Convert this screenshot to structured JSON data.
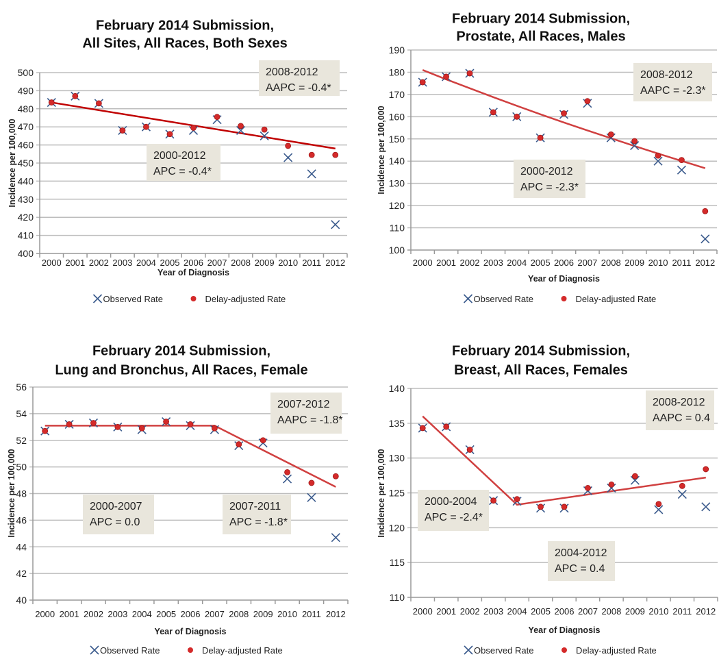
{
  "chart_data": [
    {
      "type": "scatter",
      "title_lines": [
        "February 2014 Submission,",
        "All Sites, All Races, Both Sexes"
      ],
      "xlabel": "Year of Diagnosis",
      "ylabel": "Incidence per 100,000",
      "ylim": [
        400,
        500
      ],
      "ystep": 10,
      "categories": [
        "2000",
        "2001",
        "2002",
        "2003",
        "2004",
        "2005",
        "2006",
        "2007",
        "2008",
        "2009",
        "2010",
        "2011",
        "2012"
      ],
      "series": [
        {
          "name": "Observed Rate",
          "marker": "x",
          "color": "#3a5a8c",
          "values": [
            483.5,
            487,
            483,
            468,
            470,
            466,
            468,
            474,
            468,
            465,
            453,
            444,
            416
          ]
        },
        {
          "name": "Delay-adjusted Rate",
          "marker": "dot",
          "color": "#d42a2a",
          "values": [
            483.5,
            487,
            483,
            468,
            470,
            466,
            469.5,
            475.5,
            470.5,
            468.5,
            459.5,
            454.5,
            454.5
          ]
        }
      ],
      "trend": {
        "color": "#c00000",
        "points": [
          [
            0,
            483.5
          ],
          [
            12,
            458
          ]
        ]
      },
      "annotations": [
        [
          "2008-2012",
          "AAPC = -0.4*"
        ],
        [
          "2000-2012",
          "APC = -0.4*"
        ]
      ],
      "grid": true,
      "legend": "bottom"
    },
    {
      "type": "scatter",
      "title_lines": [
        "February 2014 Submission,",
        "Prostate, All Races, Males"
      ],
      "xlabel": "Year of Diagnosis",
      "ylabel": "Incidence per 100,000",
      "ylim": [
        100,
        190
      ],
      "ystep": 10,
      "categories": [
        "2000",
        "2001",
        "2002",
        "2003",
        "2004",
        "2005",
        "2006",
        "2007",
        "2008",
        "2009",
        "2010",
        "2011",
        "2012"
      ],
      "series": [
        {
          "name": "Observed Rate",
          "marker": "x",
          "color": "#3a5a8c",
          "values": [
            175.5,
            178,
            179.5,
            162,
            160,
            150.5,
            161,
            166,
            150.5,
            147,
            140,
            136,
            105
          ]
        },
        {
          "name": "Delay-adjusted Rate",
          "marker": "dot",
          "color": "#d42a2a",
          "values": [
            175.5,
            178,
            179.5,
            162,
            160,
            150.5,
            161.5,
            167,
            152,
            149,
            142.5,
            140.5,
            117.5
          ]
        }
      ],
      "trend": {
        "color": "#d04040",
        "points": [
          [
            0,
            181
          ],
          [
            1,
            176.8
          ],
          [
            2,
            172.8
          ],
          [
            3,
            168.8
          ],
          [
            4,
            164.9
          ],
          [
            5,
            161.1
          ],
          [
            6,
            157.4
          ],
          [
            7,
            153.8
          ],
          [
            8,
            150.3
          ],
          [
            9,
            146.8
          ],
          [
            10,
            143.4
          ],
          [
            11,
            140.1
          ],
          [
            12,
            136.8
          ]
        ]
      },
      "annotations": [
        [
          "2008-2012",
          "AAPC = -2.3*"
        ],
        [
          "2000-2012",
          "APC = -2.3*"
        ]
      ],
      "grid": true,
      "legend": "bottom"
    },
    {
      "type": "scatter",
      "title_lines": [
        "February 2014 Submission,",
        "Lung and Bronchus, All Races, Female"
      ],
      "xlabel": "Year of Diagnosis",
      "ylabel": "Incidence per 100,000",
      "ylim": [
        40,
        56
      ],
      "ystep": 2,
      "categories": [
        "2000",
        "2001",
        "2002",
        "2003",
        "2004",
        "2005",
        "2006",
        "2007",
        "2008",
        "2009",
        "2010",
        "2011",
        "2012"
      ],
      "series": [
        {
          "name": "Observed Rate",
          "marker": "x",
          "color": "#3a5a8c",
          "values": [
            52.7,
            53.2,
            53.3,
            53.0,
            52.8,
            53.4,
            53.1,
            52.8,
            51.6,
            51.8,
            49.1,
            47.7,
            44.7
          ]
        },
        {
          "name": "Delay-adjusted Rate",
          "marker": "dot",
          "color": "#d42a2a",
          "values": [
            52.7,
            53.2,
            53.3,
            53.0,
            52.9,
            53.4,
            53.2,
            52.9,
            51.7,
            52.0,
            49.6,
            48.8,
            49.3
          ]
        }
      ],
      "trend": {
        "color": "#d04040",
        "points": [
          [
            0,
            53.1
          ],
          [
            7,
            53.1
          ],
          [
            12,
            48.5
          ]
        ]
      },
      "annotations": [
        [
          "2007-2012",
          "AAPC = -1.8*"
        ],
        [
          "2000-2007",
          "APC = 0.0"
        ],
        [
          "2007-2011",
          "APC = -1.8*"
        ]
      ],
      "grid": true,
      "legend": "bottom"
    },
    {
      "type": "scatter",
      "title_lines": [
        "February 2014 Submission,",
        "Breast, All Races, Females"
      ],
      "xlabel": "Year of Diagnosis",
      "ylabel": "Incidence per 100,000",
      "ylim": [
        110,
        140
      ],
      "ystep": 5,
      "categories": [
        "2000",
        "2001",
        "2002",
        "2003",
        "2004",
        "2005",
        "2006",
        "2007",
        "2008",
        "2009",
        "2010",
        "2011",
        "2012"
      ],
      "series": [
        {
          "name": "Observed Rate",
          "marker": "x",
          "color": "#3a5a8c",
          "values": [
            134.3,
            134.5,
            131.2,
            123.9,
            123.8,
            122.8,
            122.8,
            125.3,
            125.7,
            126.8,
            122.6,
            124.8,
            123.0
          ]
        },
        {
          "name": "Delay-adjusted Rate",
          "marker": "dot",
          "color": "#d42a2a",
          "values": [
            134.3,
            134.5,
            131.2,
            123.9,
            124.1,
            123.0,
            123.0,
            125.7,
            126.2,
            127.4,
            123.4,
            126.0,
            128.4
          ]
        }
      ],
      "trend": {
        "color": "#d04040",
        "points": [
          [
            0,
            136
          ],
          [
            4,
            123.3
          ],
          [
            12,
            127.2
          ]
        ]
      },
      "annotations": [
        [
          "2008-2012",
          "AAPC = 0.4"
        ],
        [
          "2000-2004",
          "APC = -2.4*"
        ],
        [
          "2004-2012",
          "APC = 0.4"
        ]
      ],
      "grid": true,
      "legend": "bottom"
    }
  ]
}
